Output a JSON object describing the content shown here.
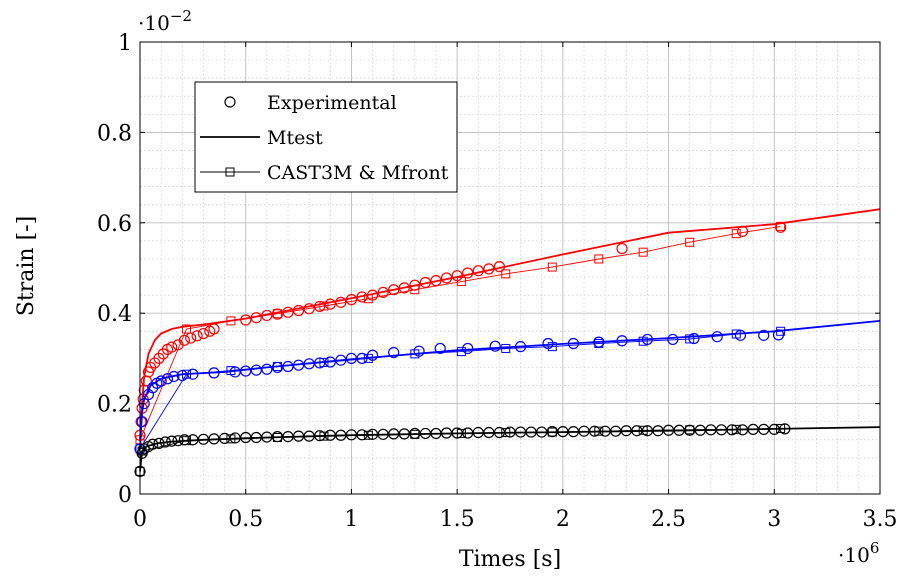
{
  "chart_data": {
    "type": "scatter",
    "title": "",
    "xlabel": "Times [s]",
    "ylabel": "Strain [-]",
    "x_exponent": "·10^6",
    "y_exponent": "·10^−2",
    "xlim": [
      0,
      3.5
    ],
    "ylim": [
      0,
      1
    ],
    "x_ticks": [
      0,
      0.5,
      1,
      1.5,
      2,
      2.5,
      3,
      3.5
    ],
    "x_tick_labels": [
      "0",
      "0.5",
      "1",
      "1.5",
      "2",
      "2.5",
      "3",
      "3.5"
    ],
    "y_ticks": [
      0,
      0.2,
      0.4,
      0.6,
      0.8,
      1
    ],
    "y_tick_labels": [
      "0",
      "0.2",
      "0.4",
      "0.6",
      "0.8",
      "1"
    ],
    "grid": true,
    "legend": {
      "position": "top-left",
      "entries": [
        {
          "label": "Experimental",
          "marker": "circle",
          "line": false
        },
        {
          "label": "Mtest",
          "marker": "none",
          "line": true
        },
        {
          "label": "CAST3M & Mfront",
          "marker": "square",
          "line": true
        }
      ]
    },
    "groups": [
      {
        "color": "#ff0000",
        "experimental": [
          [
            0.0,
            0.13
          ],
          [
            0.005,
            0.16
          ],
          [
            0.01,
            0.19
          ],
          [
            0.015,
            0.21
          ],
          [
            0.02,
            0.23
          ],
          [
            0.03,
            0.25
          ],
          [
            0.04,
            0.27
          ],
          [
            0.05,
            0.28
          ],
          [
            0.07,
            0.29
          ],
          [
            0.09,
            0.3
          ],
          [
            0.11,
            0.31
          ],
          [
            0.13,
            0.32
          ],
          [
            0.15,
            0.325
          ],
          [
            0.18,
            0.33
          ],
          [
            0.21,
            0.34
          ],
          [
            0.24,
            0.345
          ],
          [
            0.27,
            0.35
          ],
          [
            0.3,
            0.355
          ],
          [
            0.33,
            0.36
          ],
          [
            0.35,
            0.365
          ],
          [
            0.5,
            0.385
          ],
          [
            0.55,
            0.39
          ],
          [
            0.6,
            0.395
          ],
          [
            0.65,
            0.398
          ],
          [
            0.7,
            0.402
          ],
          [
            0.75,
            0.406
          ],
          [
            0.8,
            0.41
          ],
          [
            0.85,
            0.415
          ],
          [
            0.9,
            0.42
          ],
          [
            0.95,
            0.424
          ],
          [
            1.0,
            0.43
          ],
          [
            1.05,
            0.436
          ],
          [
            1.1,
            0.44
          ],
          [
            1.15,
            0.446
          ],
          [
            1.2,
            0.452
          ],
          [
            1.25,
            0.456
          ],
          [
            1.3,
            0.462
          ],
          [
            1.35,
            0.468
          ],
          [
            1.4,
            0.472
          ],
          [
            1.45,
            0.478
          ],
          [
            1.5,
            0.483
          ],
          [
            1.55,
            0.489
          ],
          [
            1.6,
            0.494
          ],
          [
            1.65,
            0.498
          ],
          [
            1.7,
            0.503
          ],
          [
            2.28,
            0.543
          ],
          [
            2.85,
            0.581
          ],
          [
            3.03,
            0.59
          ]
        ],
        "mtest": [
          [
            0.0,
            0.12
          ],
          [
            0.01,
            0.2
          ],
          [
            0.02,
            0.26
          ],
          [
            0.04,
            0.31
          ],
          [
            0.07,
            0.34
          ],
          [
            0.1,
            0.355
          ],
          [
            0.15,
            0.365
          ],
          [
            0.2,
            0.37
          ],
          [
            0.3,
            0.375
          ],
          [
            0.5,
            0.388
          ],
          [
            1.0,
            0.433
          ],
          [
            1.5,
            0.48
          ],
          [
            2.0,
            0.53
          ],
          [
            2.5,
            0.578
          ],
          [
            3.0,
            0.597
          ],
          [
            3.5,
            0.63
          ]
        ],
        "cast3m": [
          [
            0.0,
            0.12
          ],
          [
            0.22,
            0.365
          ],
          [
            0.43,
            0.383
          ],
          [
            0.65,
            0.399
          ],
          [
            0.87,
            0.416
          ],
          [
            1.08,
            0.432
          ],
          [
            1.3,
            0.452
          ],
          [
            1.52,
            0.47
          ],
          [
            1.73,
            0.487
          ],
          [
            1.95,
            0.502
          ],
          [
            2.17,
            0.52
          ],
          [
            2.38,
            0.535
          ],
          [
            2.6,
            0.557
          ],
          [
            2.82,
            0.576
          ],
          [
            3.03,
            0.592
          ]
        ]
      },
      {
        "color": "#0000ff",
        "experimental": [
          [
            0.0,
            0.1
          ],
          [
            0.01,
            0.16
          ],
          [
            0.02,
            0.2
          ],
          [
            0.04,
            0.22
          ],
          [
            0.06,
            0.235
          ],
          [
            0.08,
            0.245
          ],
          [
            0.1,
            0.25
          ],
          [
            0.13,
            0.255
          ],
          [
            0.16,
            0.26
          ],
          [
            0.2,
            0.262
          ],
          [
            0.25,
            0.265
          ],
          [
            0.35,
            0.268
          ],
          [
            0.45,
            0.27
          ],
          [
            0.5,
            0.272
          ],
          [
            0.55,
            0.274
          ],
          [
            0.6,
            0.276
          ],
          [
            0.65,
            0.28
          ],
          [
            0.7,
            0.282
          ],
          [
            0.75,
            0.285
          ],
          [
            0.8,
            0.288
          ],
          [
            0.85,
            0.29
          ],
          [
            0.9,
            0.292
          ],
          [
            0.95,
            0.296
          ],
          [
            1.0,
            0.3
          ],
          [
            1.05,
            0.3
          ],
          [
            1.1,
            0.307
          ],
          [
            1.2,
            0.313
          ],
          [
            1.32,
            0.316
          ],
          [
            1.42,
            0.322
          ],
          [
            1.55,
            0.322
          ],
          [
            1.68,
            0.327
          ],
          [
            1.8,
            0.326
          ],
          [
            1.93,
            0.333
          ],
          [
            2.05,
            0.333
          ],
          [
            2.17,
            0.336
          ],
          [
            2.28,
            0.339
          ],
          [
            2.4,
            0.342
          ],
          [
            2.52,
            0.342
          ],
          [
            2.62,
            0.344
          ],
          [
            2.73,
            0.348
          ],
          [
            2.84,
            0.351
          ],
          [
            2.95,
            0.351
          ],
          [
            3.02,
            0.352
          ]
        ],
        "mtest": [
          [
            0.0,
            0.1
          ],
          [
            0.01,
            0.18
          ],
          [
            0.02,
            0.21
          ],
          [
            0.05,
            0.24
          ],
          [
            0.1,
            0.255
          ],
          [
            0.2,
            0.265
          ],
          [
            0.4,
            0.27
          ],
          [
            0.6,
            0.28
          ],
          [
            1.0,
            0.298
          ],
          [
            1.5,
            0.318
          ],
          [
            2.0,
            0.332
          ],
          [
            2.5,
            0.345
          ],
          [
            3.0,
            0.36
          ],
          [
            3.5,
            0.383
          ]
        ],
        "cast3m": [
          [
            0.0,
            0.1
          ],
          [
            0.22,
            0.265
          ],
          [
            0.43,
            0.273
          ],
          [
            0.65,
            0.282
          ],
          [
            0.87,
            0.291
          ],
          [
            1.08,
            0.3
          ],
          [
            1.3,
            0.31
          ],
          [
            1.52,
            0.315
          ],
          [
            1.73,
            0.322
          ],
          [
            1.95,
            0.326
          ],
          [
            2.17,
            0.333
          ],
          [
            2.38,
            0.338
          ],
          [
            2.6,
            0.343
          ],
          [
            2.82,
            0.354
          ],
          [
            3.03,
            0.36
          ]
        ]
      },
      {
        "color": "#000000",
        "experimental": [
          [
            0.0,
            0.05
          ],
          [
            0.01,
            0.09
          ],
          [
            0.02,
            0.1
          ],
          [
            0.04,
            0.105
          ],
          [
            0.06,
            0.11
          ],
          [
            0.09,
            0.112
          ],
          [
            0.12,
            0.115
          ],
          [
            0.15,
            0.117
          ],
          [
            0.18,
            0.118
          ],
          [
            0.21,
            0.12
          ],
          [
            0.25,
            0.12
          ],
          [
            0.3,
            0.121
          ],
          [
            0.35,
            0.122
          ],
          [
            0.4,
            0.123
          ],
          [
            0.45,
            0.124
          ],
          [
            0.5,
            0.125
          ],
          [
            0.55,
            0.125
          ],
          [
            0.6,
            0.126
          ],
          [
            0.65,
            0.127
          ],
          [
            0.7,
            0.127
          ],
          [
            0.75,
            0.128
          ],
          [
            0.8,
            0.128
          ],
          [
            0.85,
            0.129
          ],
          [
            0.9,
            0.13
          ],
          [
            0.95,
            0.13
          ],
          [
            1.0,
            0.131
          ],
          [
            1.05,
            0.131
          ],
          [
            1.1,
            0.132
          ],
          [
            1.15,
            0.132
          ],
          [
            1.2,
            0.133
          ],
          [
            1.25,
            0.133
          ],
          [
            1.3,
            0.134
          ],
          [
            1.35,
            0.134
          ],
          [
            1.4,
            0.134
          ],
          [
            1.45,
            0.135
          ],
          [
            1.5,
            0.135
          ],
          [
            1.55,
            0.135
          ],
          [
            1.6,
            0.136
          ],
          [
            1.65,
            0.136
          ],
          [
            1.7,
            0.136
          ],
          [
            1.75,
            0.137
          ],
          [
            1.8,
            0.137
          ],
          [
            1.85,
            0.137
          ],
          [
            1.9,
            0.137
          ],
          [
            1.95,
            0.138
          ],
          [
            2.0,
            0.138
          ],
          [
            2.05,
            0.138
          ],
          [
            2.1,
            0.139
          ],
          [
            2.15,
            0.139
          ],
          [
            2.2,
            0.139
          ],
          [
            2.25,
            0.139
          ],
          [
            2.3,
            0.14
          ],
          [
            2.35,
            0.14
          ],
          [
            2.4,
            0.14
          ],
          [
            2.45,
            0.14
          ],
          [
            2.5,
            0.141
          ],
          [
            2.55,
            0.141
          ],
          [
            2.6,
            0.141
          ],
          [
            2.65,
            0.141
          ],
          [
            2.7,
            0.142
          ],
          [
            2.75,
            0.142
          ],
          [
            2.8,
            0.142
          ],
          [
            2.85,
            0.142
          ],
          [
            2.9,
            0.143
          ],
          [
            2.95,
            0.143
          ],
          [
            3.0,
            0.143
          ],
          [
            3.05,
            0.144
          ]
        ],
        "mtest": [
          [
            0.0,
            0.05
          ],
          [
            0.01,
            0.095
          ],
          [
            0.03,
            0.105
          ],
          [
            0.08,
            0.112
          ],
          [
            0.15,
            0.116
          ],
          [
            0.3,
            0.12
          ],
          [
            0.6,
            0.125
          ],
          [
            1.0,
            0.13
          ],
          [
            1.5,
            0.134
          ],
          [
            2.0,
            0.137
          ],
          [
            2.5,
            0.14
          ],
          [
            3.0,
            0.144
          ],
          [
            3.5,
            0.148
          ]
        ],
        "cast3m": [
          [
            0.0,
            0.05
          ],
          [
            0.01,
            0.095
          ],
          [
            0.22,
            0.118
          ],
          [
            0.43,
            0.122
          ],
          [
            0.65,
            0.125
          ],
          [
            0.87,
            0.128
          ],
          [
            1.08,
            0.13
          ],
          [
            1.3,
            0.132
          ],
          [
            1.52,
            0.134
          ],
          [
            1.73,
            0.136
          ],
          [
            1.95,
            0.137
          ],
          [
            2.17,
            0.139
          ],
          [
            2.38,
            0.141
          ],
          [
            2.6,
            0.142
          ],
          [
            2.82,
            0.143
          ],
          [
            3.03,
            0.145
          ]
        ]
      }
    ]
  }
}
